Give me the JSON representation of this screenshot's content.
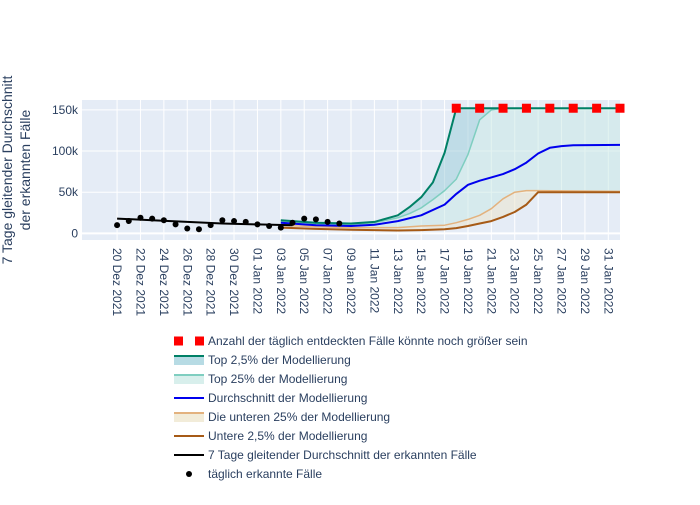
{
  "chart_data": {
    "type": "line",
    "ylabel": [
      "7 Tage gleitender Durchschnitt",
      "der erkannten Fälle"
    ],
    "y_ticks": [
      {
        "value": 0,
        "label": "0"
      },
      {
        "value": 50000,
        "label": "50k"
      },
      {
        "value": 100000,
        "label": "100k"
      },
      {
        "value": 150000,
        "label": "150k"
      }
    ],
    "ylim": [
      -8000,
      162000
    ],
    "x_ticks": [
      "20 Dez 2021",
      "22 Dez 2021",
      "24 Dez 2021",
      "26 Dez 2021",
      "28 Dez 2021",
      "30 Dez 2021",
      "01 Jan 2022",
      "03 Jan 2022",
      "05 Jan 2022",
      "07 Jan 2022",
      "09 Jan 2022",
      "11 Jan 2022",
      "13 Jan 2022",
      "15 Jan 2022",
      "17 Jan 2022",
      "19 Jan 2022",
      "21 Jan 2022",
      "23 Jan 2022",
      "25 Jan 2022",
      "27 Jan 2022",
      "29 Jan 2022",
      "31 Jan 2022"
    ],
    "xlim": [
      "2021-12-17",
      "2022-02-01"
    ],
    "grid": true,
    "legend_placement": "bottom",
    "series": [
      {
        "key": "daily",
        "name": "täglich erkannte Fälle",
        "kind": "markers",
        "color": "#000000",
        "x": [
          "2021-12-20",
          "2021-12-21",
          "2021-12-22",
          "2021-12-23",
          "2021-12-24",
          "2021-12-25",
          "2021-12-26",
          "2021-12-27",
          "2021-12-28",
          "2021-12-29",
          "2021-12-30",
          "2021-12-31",
          "2022-01-01",
          "2022-01-02",
          "2022-01-03",
          "2022-01-04",
          "2022-01-05",
          "2022-01-06",
          "2022-01-07",
          "2022-01-08"
        ],
        "y": [
          10000,
          15000,
          19000,
          18000,
          16000,
          11000,
          6000,
          5000,
          10000,
          16000,
          15000,
          14000,
          11000,
          9000,
          7000,
          13000,
          18000,
          17000,
          14000,
          12000
        ]
      },
      {
        "key": "ma7",
        "name": "7 Tage gleitender Durchschnitt der erkannten Fälle",
        "kind": "line",
        "color": "#000000",
        "x": [
          "2021-12-20",
          "2021-12-23",
          "2021-12-26",
          "2021-12-29",
          "2022-01-01",
          "2022-01-04"
        ],
        "y": [
          18000,
          16000,
          14000,
          12000,
          11000,
          10000
        ]
      },
      {
        "key": "upper25",
        "name": "Top 2,5% der Modellierung",
        "kind": "band-line",
        "color": "#008066",
        "fill": "#99ccd8",
        "x": [
          "2022-01-03",
          "2022-01-06",
          "2022-01-09",
          "2022-01-11",
          "2022-01-13",
          "2022-01-14",
          "2022-01-15",
          "2022-01-16",
          "2022-01-17",
          "2022-01-18",
          "2022-01-19",
          "2022-01-22",
          "2022-01-26",
          "2022-02-01"
        ],
        "y": [
          16000,
          13000,
          12000,
          14000,
          22000,
          32000,
          44000,
          62000,
          98000,
          152000,
          152000,
          152000,
          152000,
          152000
        ]
      },
      {
        "key": "top25",
        "name": "Top 25% der Modellierung",
        "kind": "band-line",
        "color": "#7fcec0",
        "fill": "#c8e8e4",
        "x": [
          "2022-01-03",
          "2022-01-06",
          "2022-01-09",
          "2022-01-11",
          "2022-01-13",
          "2022-01-14",
          "2022-01-15",
          "2022-01-16",
          "2022-01-17",
          "2022-01-18",
          "2022-01-19",
          "2022-01-20",
          "2022-01-21",
          "2022-01-22",
          "2022-02-01"
        ],
        "y": [
          14000,
          11500,
          11000,
          13000,
          19000,
          24000,
          31000,
          41000,
          52000,
          66000,
          96000,
          138000,
          150000,
          152000,
          152000
        ]
      },
      {
        "key": "mean",
        "name": "Durchschnitt der Modellierung",
        "kind": "line",
        "color": "#0000ee",
        "x": [
          "2022-01-03",
          "2022-01-06",
          "2022-01-09",
          "2022-01-11",
          "2022-01-13",
          "2022-01-15",
          "2022-01-17",
          "2022-01-18",
          "2022-01-19",
          "2022-01-20",
          "2022-01-21",
          "2022-01-22",
          "2022-01-23",
          "2022-01-24",
          "2022-01-25",
          "2022-01-26",
          "2022-01-27",
          "2022-01-28",
          "2022-02-01"
        ],
        "y": [
          13000,
          10000,
          9000,
          10500,
          15000,
          22000,
          35000,
          48000,
          59000,
          64000,
          68000,
          72000,
          78000,
          86000,
          97000,
          104000,
          106000,
          107000,
          107500
        ]
      },
      {
        "key": "low25",
        "name": "Die unteren 25% der Modellierung",
        "kind": "band-line",
        "color": "#e3b27e",
        "fill": "#ece4c9",
        "x": [
          "2022-01-03",
          "2022-01-06",
          "2022-01-09",
          "2022-01-11",
          "2022-01-13",
          "2022-01-15",
          "2022-01-17",
          "2022-01-18",
          "2022-01-19",
          "2022-01-20",
          "2022-01-21",
          "2022-01-22",
          "2022-01-23",
          "2022-01-24",
          "2022-01-25",
          "2022-02-01"
        ],
        "y": [
          10000,
          8000,
          7000,
          7000,
          7000,
          9000,
          10000,
          13000,
          17000,
          22000,
          30000,
          42000,
          50000,
          52000,
          52000,
          51000
        ]
      },
      {
        "key": "low2_5",
        "name": "Untere 2,5% der Modellierung",
        "kind": "line",
        "color": "#a65a16",
        "x": [
          "2022-01-03",
          "2022-01-06",
          "2022-01-09",
          "2022-01-11",
          "2022-01-13",
          "2022-01-15",
          "2022-01-17",
          "2022-01-18",
          "2022-01-19",
          "2022-01-20",
          "2022-01-21",
          "2022-01-22",
          "2022-01-23",
          "2022-01-24",
          "2022-01-25",
          "2022-02-01"
        ],
        "y": [
          7000,
          5500,
          4500,
          4000,
          3500,
          4000,
          5000,
          6500,
          9000,
          12000,
          15000,
          20000,
          26000,
          35000,
          50000,
          50000
        ]
      },
      {
        "key": "possible",
        "name": "Anzahl der täglich entdeckten Fälle könnte noch größer sein",
        "kind": "square-markers",
        "color": "#ff0000",
        "x": [
          "2022-01-18",
          "2022-01-20",
          "2022-01-22",
          "2022-01-24",
          "2022-01-26",
          "2022-01-28",
          "2022-01-30",
          "2022-02-01"
        ],
        "y": [
          152000,
          152000,
          152000,
          152000,
          152000,
          152000,
          152000,
          152000
        ]
      }
    ],
    "legend_order": [
      "possible",
      "upper25",
      "top25",
      "mean",
      "low25",
      "low2_5",
      "ma7",
      "daily"
    ]
  }
}
